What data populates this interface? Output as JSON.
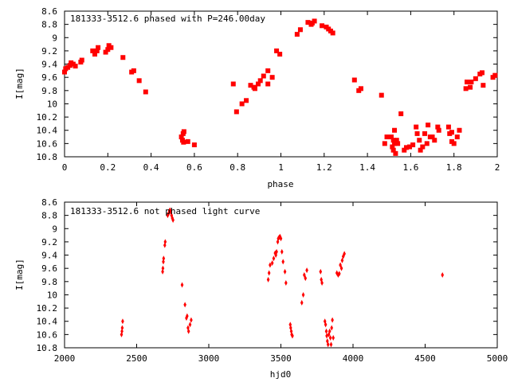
{
  "chart_data": [
    {
      "type": "scatter",
      "title": "181333-3512.6 phased with P=246.00day",
      "xlabel": "phase",
      "ylabel": "I[mag]",
      "xlim": [
        0,
        2
      ],
      "ylim": [
        8.6,
        10.8
      ],
      "y_inverted": true,
      "grid": false,
      "marker_color": "#ff0000",
      "marker": "filled-square",
      "xticks": [
        "0",
        "0.2",
        "0.4",
        "0.6",
        "0.8",
        "1",
        "1.2",
        "1.4",
        "1.6",
        "1.8",
        "2"
      ],
      "yticks": [
        "8.6",
        "8.8",
        "9",
        "9.2",
        "9.4",
        "9.6",
        "9.8",
        "10",
        "10.2",
        "10.4",
        "10.6",
        "10.8"
      ],
      "points": [
        [
          0.0,
          9.52
        ],
        [
          0.005,
          9.47
        ],
        [
          0.015,
          9.45
        ],
        [
          0.025,
          9.42
        ],
        [
          0.03,
          9.38
        ],
        [
          0.04,
          9.4
        ],
        [
          0.05,
          9.43
        ],
        [
          0.075,
          9.37
        ],
        [
          0.08,
          9.34
        ],
        [
          0.13,
          9.2
        ],
        [
          0.14,
          9.25
        ],
        [
          0.15,
          9.2
        ],
        [
          0.155,
          9.15
        ],
        [
          0.19,
          9.22
        ],
        [
          0.2,
          9.18
        ],
        [
          0.205,
          9.12
        ],
        [
          0.215,
          9.15
        ],
        [
          0.27,
          9.3
        ],
        [
          0.31,
          9.52
        ],
        [
          0.32,
          9.5
        ],
        [
          0.345,
          9.65
        ],
        [
          0.375,
          9.82
        ],
        [
          0.54,
          10.5
        ],
        [
          0.545,
          10.55
        ],
        [
          0.548,
          10.45
        ],
        [
          0.55,
          10.58
        ],
        [
          0.552,
          10.42
        ],
        [
          0.57,
          10.57
        ],
        [
          0.6,
          10.62
        ],
        [
          0.78,
          9.7
        ],
        [
          0.795,
          10.12
        ],
        [
          0.82,
          10.0
        ],
        [
          0.84,
          9.95
        ],
        [
          0.86,
          9.72
        ],
        [
          0.875,
          9.75
        ],
        [
          0.88,
          9.77
        ],
        [
          0.895,
          9.7
        ],
        [
          0.905,
          9.65
        ],
        [
          0.92,
          9.58
        ],
        [
          0.94,
          9.5
        ],
        [
          0.94,
          9.7
        ],
        [
          0.96,
          9.6
        ],
        [
          0.98,
          9.2
        ],
        [
          0.995,
          9.25
        ],
        [
          1.075,
          8.95
        ],
        [
          1.09,
          8.88
        ],
        [
          1.125,
          8.77
        ],
        [
          1.14,
          8.8
        ],
        [
          1.145,
          8.78
        ],
        [
          1.155,
          8.75
        ],
        [
          1.19,
          8.82
        ],
        [
          1.21,
          8.84
        ],
        [
          1.22,
          8.87
        ],
        [
          1.23,
          8.9
        ],
        [
          1.24,
          8.93
        ],
        [
          1.34,
          9.64
        ],
        [
          1.36,
          9.8
        ],
        [
          1.37,
          9.77
        ],
        [
          1.465,
          9.87
        ],
        [
          1.48,
          10.6
        ],
        [
          1.49,
          10.5
        ],
        [
          1.51,
          10.5
        ],
        [
          1.515,
          10.65
        ],
        [
          1.52,
          10.7
        ],
        [
          1.52,
          10.55
        ],
        [
          1.525,
          10.6
        ],
        [
          1.525,
          10.4
        ],
        [
          1.53,
          10.75
        ],
        [
          1.535,
          10.55
        ],
        [
          1.54,
          10.6
        ],
        [
          1.555,
          10.15
        ],
        [
          1.57,
          10.7
        ],
        [
          1.58,
          10.66
        ],
        [
          1.595,
          10.65
        ],
        [
          1.61,
          10.62
        ],
        [
          1.625,
          10.35
        ],
        [
          1.63,
          10.45
        ],
        [
          1.64,
          10.55
        ],
        [
          1.645,
          10.7
        ],
        [
          1.655,
          10.65
        ],
        [
          1.665,
          10.45
        ],
        [
          1.675,
          10.6
        ],
        [
          1.68,
          10.32
        ],
        [
          1.69,
          10.5
        ],
        [
          1.7,
          10.5
        ],
        [
          1.71,
          10.55
        ],
        [
          1.725,
          10.35
        ],
        [
          1.73,
          10.4
        ],
        [
          1.775,
          10.35
        ],
        [
          1.78,
          10.45
        ],
        [
          1.79,
          10.57
        ],
        [
          1.79,
          10.43
        ],
        [
          1.8,
          10.6
        ],
        [
          1.815,
          10.5
        ],
        [
          1.825,
          10.4
        ],
        [
          1.855,
          9.77
        ],
        [
          1.86,
          9.67
        ],
        [
          1.875,
          9.75
        ],
        [
          1.88,
          9.67
        ],
        [
          1.9,
          9.62
        ],
        [
          1.92,
          9.55
        ],
        [
          1.93,
          9.53
        ],
        [
          1.935,
          9.72
        ],
        [
          1.98,
          9.6
        ],
        [
          1.99,
          9.57
        ]
      ]
    },
    {
      "type": "scatter",
      "title": "181333-3512.6 not phased light curve",
      "xlabel": "hjd0",
      "ylabel": "I[mag]",
      "xlim": [
        2000,
        5000
      ],
      "ylim": [
        8.6,
        10.8
      ],
      "y_inverted": true,
      "grid": false,
      "marker_color": "#ff0000",
      "marker": "filled-diamond",
      "xticks": [
        "2000",
        "2500",
        "3000",
        "3500",
        "4000",
        "4500",
        "5000"
      ],
      "yticks": [
        "8.6",
        "8.8",
        "9",
        "9.2",
        "9.4",
        "9.6",
        "9.8",
        "10",
        "10.2",
        "10.4",
        "10.6",
        "10.8"
      ],
      "points": [
        [
          2395,
          10.6
        ],
        [
          2398,
          10.55
        ],
        [
          2400,
          10.5
        ],
        [
          2403,
          10.4
        ],
        [
          2680,
          9.65
        ],
        [
          2682,
          9.6
        ],
        [
          2685,
          9.5
        ],
        [
          2687,
          9.45
        ],
        [
          2695,
          9.25
        ],
        [
          2698,
          9.2
        ],
        [
          2715,
          8.8
        ],
        [
          2722,
          8.77
        ],
        [
          2727,
          8.73
        ],
        [
          2732,
          8.72
        ],
        [
          2737,
          8.75
        ],
        [
          2742,
          8.8
        ],
        [
          2747,
          8.84
        ],
        [
          2752,
          8.87
        ],
        [
          2815,
          9.85
        ],
        [
          2835,
          10.15
        ],
        [
          2845,
          10.35
        ],
        [
          2850,
          10.32
        ],
        [
          2856,
          10.5
        ],
        [
          2860,
          10.55
        ],
        [
          2870,
          10.45
        ],
        [
          2878,
          10.38
        ],
        [
          3412,
          9.77
        ],
        [
          3418,
          9.67
        ],
        [
          3425,
          9.55
        ],
        [
          3440,
          9.52
        ],
        [
          3450,
          9.45
        ],
        [
          3460,
          9.37
        ],
        [
          3465,
          9.4
        ],
        [
          3470,
          9.35
        ],
        [
          3478,
          9.2
        ],
        [
          3482,
          9.15
        ],
        [
          3488,
          9.13
        ],
        [
          3494,
          9.12
        ],
        [
          3500,
          9.15
        ],
        [
          3507,
          9.35
        ],
        [
          3515,
          9.5
        ],
        [
          3528,
          9.65
        ],
        [
          3535,
          9.82
        ],
        [
          3565,
          10.45
        ],
        [
          3568,
          10.5
        ],
        [
          3572,
          10.55
        ],
        [
          3575,
          10.6
        ],
        [
          3580,
          10.62
        ],
        [
          3645,
          10.12
        ],
        [
          3655,
          10.0
        ],
        [
          3662,
          9.7
        ],
        [
          3670,
          9.75
        ],
        [
          3680,
          9.63
        ],
        [
          3775,
          9.65
        ],
        [
          3780,
          9.77
        ],
        [
          3785,
          9.82
        ],
        [
          3805,
          10.4
        ],
        [
          3810,
          10.45
        ],
        [
          3815,
          10.55
        ],
        [
          3818,
          10.62
        ],
        [
          3822,
          10.7
        ],
        [
          3827,
          10.75
        ],
        [
          3832,
          10.6
        ],
        [
          3838,
          10.55
        ],
        [
          3843,
          10.65
        ],
        [
          3848,
          10.75
        ],
        [
          3852,
          10.5
        ],
        [
          3857,
          10.38
        ],
        [
          3863,
          10.65
        ],
        [
          3888,
          9.67
        ],
        [
          3897,
          9.7
        ],
        [
          3905,
          9.68
        ],
        [
          3912,
          9.55
        ],
        [
          3920,
          9.6
        ],
        [
          3925,
          9.48
        ],
        [
          3932,
          9.42
        ],
        [
          3940,
          9.38
        ],
        [
          4620,
          9.7
        ]
      ]
    }
  ]
}
